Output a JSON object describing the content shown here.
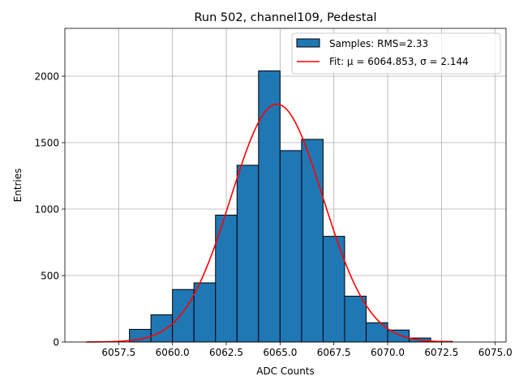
{
  "chart_data": {
    "type": "bar",
    "title": "Run 502, channel109, Pedestal",
    "xlabel": "ADC Counts",
    "ylabel": "Entries",
    "xlim": [
      6055.0,
      6075.5
    ],
    "ylim": [
      0,
      2360
    ],
    "grid": true,
    "legend_placement": "top-right",
    "x_ticks": [
      6057.5,
      6060.0,
      6062.5,
      6065.0,
      6067.5,
      6070.0,
      6072.5,
      6075.0
    ],
    "x_tick_labels": [
      "6057.5",
      "6060.0",
      "6062.5",
      "6065.0",
      "6067.5",
      "6070.0",
      "6072.5",
      "6075.0"
    ],
    "y_ticks": [
      0,
      500,
      1000,
      1500,
      2000
    ],
    "y_tick_labels": [
      "0",
      "500",
      "1000",
      "1500",
      "2000"
    ],
    "histogram": {
      "name": "Samples: RMS=2.33",
      "color": "#1f77b4",
      "edge_color": "#000000",
      "bin_width": 1,
      "bin_starts": [
        6058,
        6059,
        6060,
        6061,
        6062,
        6063,
        6064,
        6065,
        6066,
        6067,
        6068,
        6069,
        6070,
        6071,
        6072
      ],
      "values": [
        95,
        205,
        395,
        445,
        955,
        1330,
        2040,
        1440,
        1525,
        795,
        345,
        145,
        90,
        30,
        5
      ]
    },
    "fit": {
      "name": "Fit: μ = 6064.853, σ = 2.144",
      "color": "#ff0000",
      "function": "gaussian",
      "mu": 6064.853,
      "sigma": 2.144,
      "amplitude": 1790,
      "x_range": [
        6056,
        6073
      ]
    }
  }
}
